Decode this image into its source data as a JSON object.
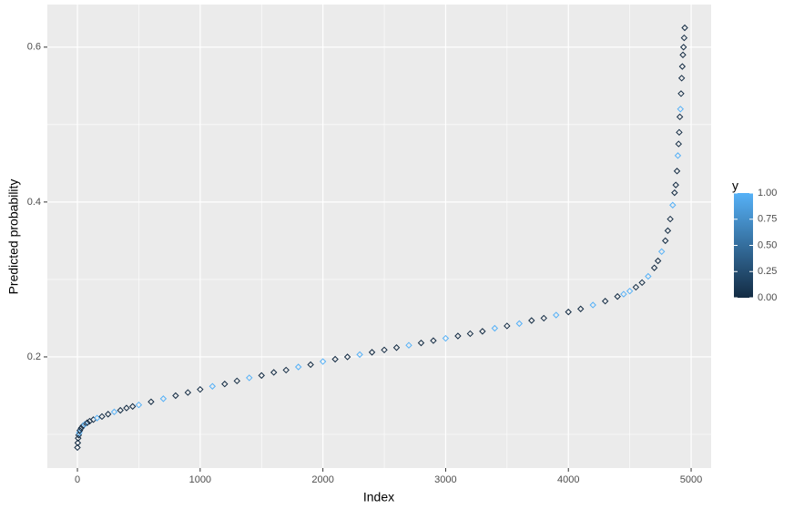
{
  "chart_data": {
    "type": "scatter",
    "x_label": "Index",
    "y_label": "Predicted probability",
    "xlim": [
      -245,
      5163
    ],
    "ylim": [
      0.0565,
      0.655
    ],
    "xticks": [
      0,
      1000,
      2000,
      3000,
      4000,
      5000
    ],
    "yticks": [
      0.2,
      0.4,
      0.6
    ],
    "minor_xticks": [
      500,
      1500,
      2500,
      3500,
      4500
    ],
    "minor_yticks": [
      0.1,
      0.3,
      0.5
    ],
    "grid": true,
    "x": [
      0,
      3,
      6,
      10,
      15,
      20,
      30,
      45,
      60,
      80,
      100,
      130,
      160,
      200,
      250,
      300,
      350,
      400,
      450,
      500,
      600,
      700,
      800,
      900,
      1000,
      1100,
      1200,
      1300,
      1400,
      1500,
      1600,
      1700,
      1800,
      1900,
      2000,
      2100,
      2200,
      2300,
      2400,
      2500,
      2600,
      2700,
      2800,
      2900,
      3000,
      3100,
      3200,
      3300,
      3400,
      3500,
      3600,
      3700,
      3800,
      3900,
      4000,
      4100,
      4200,
      4300,
      4400,
      4450,
      4500,
      4550,
      4600,
      4650,
      4700,
      4730,
      4760,
      4790,
      4810,
      4830,
      4850,
      4865,
      4875,
      4885,
      4892,
      4898,
      4903,
      4908,
      4913,
      4918,
      4923,
      4928,
      4933,
      4938,
      4943,
      4948
    ],
    "values": [
      0.083,
      0.089,
      0.095,
      0.099,
      0.102,
      0.105,
      0.108,
      0.111,
      0.113,
      0.115,
      0.117,
      0.119,
      0.121,
      0.123,
      0.126,
      0.129,
      0.131,
      0.134,
      0.136,
      0.138,
      0.142,
      0.146,
      0.15,
      0.154,
      0.158,
      0.162,
      0.165,
      0.169,
      0.173,
      0.176,
      0.18,
      0.183,
      0.187,
      0.19,
      0.194,
      0.197,
      0.2,
      0.203,
      0.206,
      0.209,
      0.212,
      0.215,
      0.218,
      0.221,
      0.224,
      0.227,
      0.23,
      0.233,
      0.237,
      0.24,
      0.243,
      0.247,
      0.25,
      0.254,
      0.258,
      0.262,
      0.267,
      0.272,
      0.278,
      0.281,
      0.285,
      0.29,
      0.296,
      0.304,
      0.315,
      0.324,
      0.336,
      0.35,
      0.363,
      0.378,
      0.396,
      0.412,
      0.422,
      0.44,
      0.46,
      0.475,
      0.49,
      0.51,
      0.52,
      0.54,
      0.56,
      0.575,
      0.59,
      0.6,
      0.612,
      0.625
    ],
    "color_values": [
      0,
      0,
      0,
      0,
      1,
      0,
      0,
      0,
      1,
      0,
      0,
      0,
      1,
      0,
      0,
      1,
      0,
      0,
      0,
      1,
      0,
      1,
      0,
      0,
      0,
      1,
      0,
      0,
      1,
      0,
      0,
      0,
      1,
      0,
      1,
      0,
      0,
      1,
      0,
      0,
      0,
      1,
      0,
      0,
      1,
      0,
      0,
      0,
      1,
      0,
      1,
      0,
      0,
      1,
      0,
      0,
      1,
      0,
      0,
      1,
      1,
      0,
      0,
      1,
      0,
      0,
      1,
      0,
      0,
      0,
      1,
      0,
      0,
      0,
      1,
      0,
      0,
      0,
      1,
      0,
      0,
      0,
      0,
      0,
      0,
      0
    ],
    "colorbar": {
      "title": "y",
      "limits": [
        0,
        1
      ],
      "low_color": "#132b43",
      "high_color": "#56b1f7",
      "ticks": [
        {
          "value": 0,
          "label": "0.00"
        },
        {
          "value": 0.25,
          "label": "0.25"
        },
        {
          "value": 0.5,
          "label": "0.50"
        },
        {
          "value": 0.75,
          "label": "0.75"
        },
        {
          "value": 1,
          "label": "1.00"
        }
      ]
    }
  }
}
